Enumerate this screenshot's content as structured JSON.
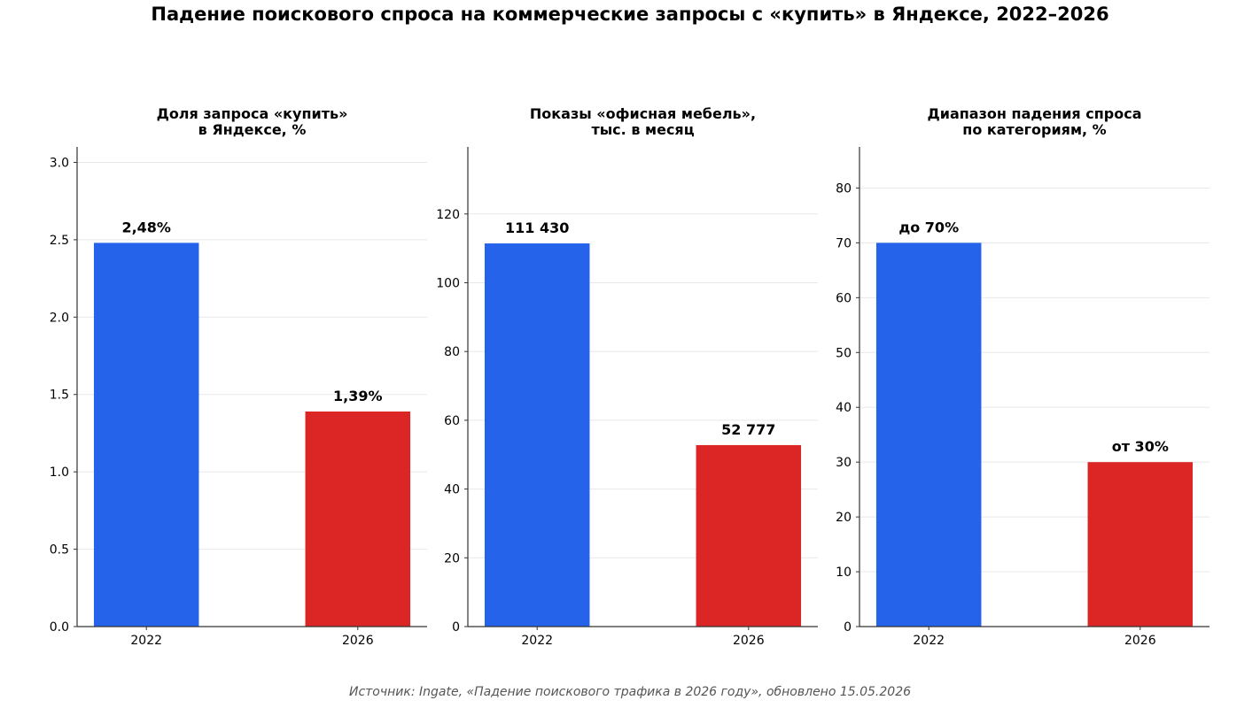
{
  "title": "Падение поискового спроса на коммерческие запросы с «купить» в Яндексе, 2022–2026",
  "source": "Источник: Ingate, «Падение поискового трафика в 2026 году», обновлено 15.05.2026",
  "colors": {
    "bar_2022": "#2563EB",
    "bar_2026": "#DC2626",
    "grid": "#e8e8e8",
    "axis": "#333333"
  },
  "chart_data": [
    {
      "type": "bar",
      "title": "Доля запроса «купить»\nв Яндексе, %",
      "categories": [
        "2022",
        "2026"
      ],
      "values": [
        2.48,
        1.39
      ],
      "data_labels": [
        "2,48%",
        "1,39%"
      ],
      "ylim": [
        0,
        3.1
      ],
      "yticks": [
        0.0,
        0.5,
        1.0,
        1.5,
        2.0,
        2.5,
        3.0
      ],
      "ytick_labels": [
        "0.0",
        "0.5",
        "1.0",
        "1.5",
        "2.0",
        "2.5",
        "3.0"
      ],
      "grid": true
    },
    {
      "type": "bar",
      "title": "Показы «офисная мебель»,\nтыс. в месяц",
      "categories": [
        "2022",
        "2026"
      ],
      "values": [
        111.43,
        52.777
      ],
      "data_labels": [
        "111 430",
        "52 777"
      ],
      "ylim": [
        0,
        139.5
      ],
      "yticks": [
        0,
        20,
        40,
        60,
        80,
        100,
        120
      ],
      "ytick_labels": [
        "0",
        "20",
        "40",
        "60",
        "80",
        "100",
        "120"
      ],
      "grid": true
    },
    {
      "type": "bar",
      "title": "Диапазон падения спроса\nпо категориям, %",
      "categories": [
        "2022",
        "2026"
      ],
      "values": [
        70,
        30
      ],
      "data_labels": [
        "до 70%",
        "от 30%"
      ],
      "ylim": [
        0,
        87.5
      ],
      "yticks": [
        0,
        10,
        20,
        30,
        40,
        50,
        60,
        70,
        80
      ],
      "ytick_labels": [
        "0",
        "10",
        "20",
        "30",
        "40",
        "50",
        "60",
        "70",
        "80"
      ],
      "grid": true
    }
  ]
}
